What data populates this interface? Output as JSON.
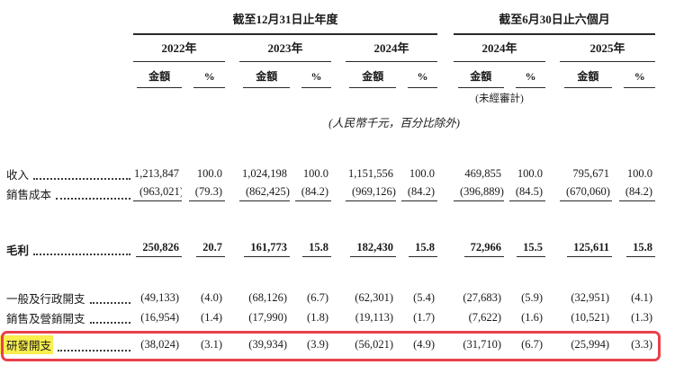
{
  "table": {
    "group_headers": [
      {
        "label": "截至12月31日止年度"
      },
      {
        "label": "截至6月30日止六個月"
      }
    ],
    "year_headers": [
      "2022年",
      "2023年",
      "2024年",
      "2024年",
      "2025年"
    ],
    "amount_label": "金額",
    "percent_label": "%",
    "unaudited_note": "(未經審計)",
    "currency_note": "(人民幣千元，百分比除外)",
    "rows": [
      {
        "label": "收入",
        "values": [
          "1,213,847",
          "100.0",
          "1,024,198",
          "100.0",
          "1,151,556",
          "100.0",
          "469,855",
          "100.0",
          "795,671",
          "100.0"
        ]
      },
      {
        "label": "銷售成本",
        "underline": true,
        "values": [
          "(963,021)",
          "(79.3)",
          "(862,425)",
          "(84.2)",
          "(969,126)",
          "(84.2)",
          "(396,889)",
          "(84.5)",
          "(670,060)",
          "(84.2)"
        ]
      },
      {
        "label": "毛利",
        "bold": true,
        "underline": true,
        "values": [
          "250,826",
          "20.7",
          "161,773",
          "15.8",
          "182,430",
          "15.8",
          "72,966",
          "15.5",
          "125,611",
          "15.8"
        ]
      },
      {
        "label": "一般及行政開支",
        "values": [
          "(49,133)",
          "(4.0)",
          "(68,126)",
          "(6.7)",
          "(62,301)",
          "(5.4)",
          "(27,683)",
          "(5.9)",
          "(32,951)",
          "(4.1)"
        ]
      },
      {
        "label": "銷售及營銷開支",
        "values": [
          "(16,954)",
          "(1.4)",
          "(17,990)",
          "(1.8)",
          "(19,113)",
          "(1.7)",
          "(7,622)",
          "(1.6)",
          "(10,521)",
          "(1.3)"
        ]
      },
      {
        "label": "研發開支",
        "highlight": true,
        "values": [
          "(38,024)",
          "(3.1)",
          "(39,934)",
          "(3.9)",
          "(56,021)",
          "(4.9)",
          "(31,710)",
          "(6.7)",
          "(25,994)",
          "(3.3)"
        ]
      }
    ],
    "annotation": {
      "box_color": "#e8414b",
      "label_highlight_color": "#f8ee4e",
      "annotated_row": "研發開支"
    }
  }
}
